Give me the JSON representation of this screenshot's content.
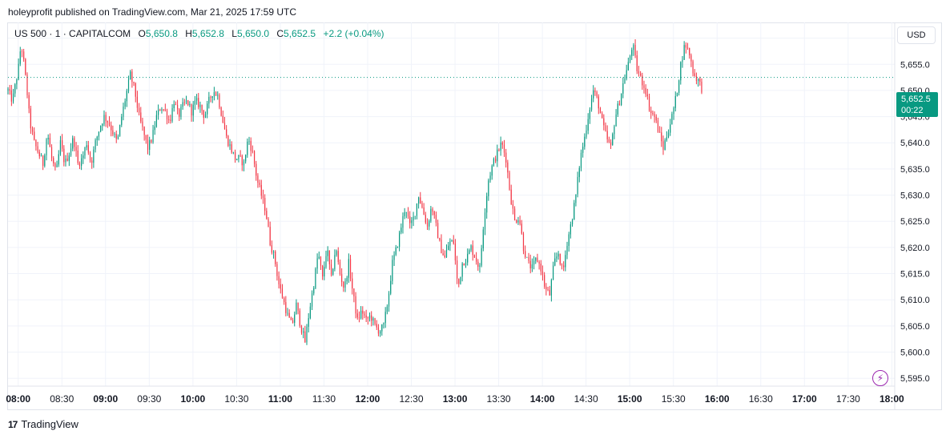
{
  "publish_line": "holeyprofit published on TradingView.com, Mar 21, 2025 17:59 UTC",
  "legend": {
    "symbol": "US 500 · 1 · CAPITALCOM",
    "o_label": "O",
    "o_value": "5,650.8",
    "h_label": "H",
    "h_value": "5,652.8",
    "l_label": "L",
    "l_value": "5,650.0",
    "c_label": "C",
    "c_value": "5,652.5",
    "change": "+2.2 (+0.04%)"
  },
  "currency": "USD",
  "last_price": {
    "value": "5,652.5",
    "countdown": "00:22"
  },
  "brand": {
    "logo": "17",
    "name": "TradingView"
  },
  "icons": {
    "replay": "lightning-icon"
  },
  "colors": {
    "up": "#089981",
    "down": "#f23645",
    "grid": "#f0f3fa",
    "axis_text": "#131722"
  },
  "chart_data": {
    "type": "candlestick",
    "timeframe_minutes": 1,
    "x_ticks": [
      "08:00",
      "08:30",
      "09:00",
      "09:30",
      "10:00",
      "10:30",
      "11:00",
      "11:30",
      "12:00",
      "12:30",
      "13:00",
      "13:30",
      "14:00",
      "14:30",
      "15:00",
      "15:30",
      "16:00",
      "16:30",
      "17:00",
      "17:30",
      "18:00"
    ],
    "y_ticks": [
      "5,660.0",
      "5,655.0",
      "5,650.0",
      "5,645.0",
      "5,640.0",
      "5,635.0",
      "5,630.0",
      "5,625.0",
      "5,620.0",
      "5,615.0",
      "5,610.0",
      "5,605.0",
      "5,600.0",
      "5,595.0"
    ],
    "ylim": [
      5593.5,
      5663
    ],
    "xlim": [
      "07:53",
      "18:02"
    ],
    "grid": true,
    "series": [
      {
        "close_path": [
          [
            "07:53",
            5650
          ],
          [
            "07:56",
            5648
          ],
          [
            "07:58",
            5651
          ],
          [
            "08:00",
            5654
          ],
          [
            "08:02",
            5659
          ],
          [
            "08:04",
            5655
          ],
          [
            "08:06",
            5650
          ],
          [
            "08:08",
            5644
          ],
          [
            "08:11",
            5640
          ],
          [
            "08:14",
            5638
          ],
          [
            "08:17",
            5636
          ],
          [
            "08:20",
            5642
          ],
          [
            "08:23",
            5637
          ],
          [
            "08:26",
            5634
          ],
          [
            "08:29",
            5640
          ],
          [
            "08:32",
            5636
          ],
          [
            "08:35",
            5638
          ],
          [
            "08:38",
            5641
          ],
          [
            "08:41",
            5636
          ],
          [
            "08:44",
            5637
          ],
          [
            "08:47",
            5640
          ],
          [
            "08:50",
            5636
          ],
          [
            "08:53",
            5640
          ],
          [
            "08:56",
            5643
          ],
          [
            "08:59",
            5645
          ],
          [
            "09:02",
            5644
          ],
          [
            "09:05",
            5642
          ],
          [
            "09:08",
            5640
          ],
          [
            "09:11",
            5645
          ],
          [
            "09:14",
            5649
          ],
          [
            "09:17",
            5653
          ],
          [
            "09:20",
            5650
          ],
          [
            "09:23",
            5645
          ],
          [
            "09:26",
            5642
          ],
          [
            "09:29",
            5639
          ],
          [
            "09:32",
            5641
          ],
          [
            "09:35",
            5645
          ],
          [
            "09:38",
            5647
          ],
          [
            "09:41",
            5646
          ],
          [
            "09:44",
            5644
          ],
          [
            "09:47",
            5648
          ],
          [
            "09:50",
            5645
          ],
          [
            "09:53",
            5647
          ],
          [
            "09:56",
            5648
          ],
          [
            "09:59",
            5646
          ],
          [
            "10:02",
            5648
          ],
          [
            "10:05",
            5647
          ],
          [
            "10:08",
            5645
          ],
          [
            "10:11",
            5648
          ],
          [
            "10:14",
            5650
          ],
          [
            "10:17",
            5649
          ],
          [
            "10:20",
            5645
          ],
          [
            "10:23",
            5641
          ],
          [
            "10:26",
            5639
          ],
          [
            "10:29",
            5637
          ],
          [
            "10:32",
            5637
          ],
          [
            "10:35",
            5636
          ],
          [
            "10:38",
            5641
          ],
          [
            "10:41",
            5638
          ],
          [
            "10:44",
            5633
          ],
          [
            "10:47",
            5630
          ],
          [
            "10:50",
            5627
          ],
          [
            "10:53",
            5621
          ],
          [
            "10:56",
            5618
          ],
          [
            "10:59",
            5613
          ],
          [
            "11:02",
            5610
          ],
          [
            "11:05",
            5607
          ],
          [
            "11:08",
            5605
          ],
          [
            "11:11",
            5609
          ],
          [
            "11:14",
            5605
          ],
          [
            "11:17",
            5602
          ],
          [
            "11:20",
            5608
          ],
          [
            "11:23",
            5613
          ],
          [
            "11:26",
            5619
          ],
          [
            "11:29",
            5614
          ],
          [
            "11:32",
            5620
          ],
          [
            "11:35",
            5614
          ],
          [
            "11:38",
            5620
          ],
          [
            "11:41",
            5615
          ],
          [
            "11:44",
            5612
          ],
          [
            "11:47",
            5617
          ],
          [
            "11:50",
            5611
          ],
          [
            "11:53",
            5606
          ],
          [
            "11:56",
            5608
          ],
          [
            "11:59",
            5606
          ],
          [
            "12:02",
            5607
          ],
          [
            "12:05",
            5605
          ],
          [
            "12:08",
            5604
          ],
          [
            "12:11",
            5605
          ],
          [
            "12:14",
            5610
          ],
          [
            "12:17",
            5617
          ],
          [
            "12:20",
            5620
          ],
          [
            "12:23",
            5624
          ],
          [
            "12:26",
            5628
          ],
          [
            "12:29",
            5624
          ],
          [
            "12:32",
            5626
          ],
          [
            "12:35",
            5630
          ],
          [
            "12:38",
            5627
          ],
          [
            "12:41",
            5624
          ],
          [
            "12:44",
            5628
          ],
          [
            "12:47",
            5624
          ],
          [
            "12:50",
            5620
          ],
          [
            "12:53",
            5618
          ],
          [
            "12:56",
            5621
          ],
          [
            "12:59",
            5621
          ],
          [
            "13:02",
            5612
          ],
          [
            "13:05",
            5617
          ],
          [
            "13:08",
            5618
          ],
          [
            "13:11",
            5620
          ],
          [
            "13:14",
            5618
          ],
          [
            "13:17",
            5616
          ],
          [
            "13:20",
            5626
          ],
          [
            "13:23",
            5633
          ],
          [
            "13:26",
            5636
          ],
          [
            "13:29",
            5638
          ],
          [
            "13:32",
            5640
          ],
          [
            "13:35",
            5637
          ],
          [
            "13:38",
            5630
          ],
          [
            "13:41",
            5625
          ],
          [
            "13:44",
            5626
          ],
          [
            "13:47",
            5620
          ],
          [
            "13:50",
            5617
          ],
          [
            "13:53",
            5616
          ],
          [
            "13:56",
            5618
          ],
          [
            "13:59",
            5616
          ],
          [
            "14:02",
            5612
          ],
          [
            "14:05",
            5611
          ],
          [
            "14:08",
            5617
          ],
          [
            "14:11",
            5619
          ],
          [
            "14:14",
            5615
          ],
          [
            "14:17",
            5621
          ],
          [
            "14:20",
            5625
          ],
          [
            "14:23",
            5630
          ],
          [
            "14:26",
            5637
          ],
          [
            "14:29",
            5641
          ],
          [
            "14:32",
            5646
          ],
          [
            "14:35",
            5650
          ],
          [
            "14:38",
            5648
          ],
          [
            "14:41",
            5644
          ],
          [
            "14:44",
            5641
          ],
          [
            "14:47",
            5639
          ],
          [
            "14:50",
            5645
          ],
          [
            "14:53",
            5648
          ],
          [
            "14:56",
            5652
          ],
          [
            "14:59",
            5655
          ],
          [
            "15:02",
            5659
          ],
          [
            "15:05",
            5654
          ],
          [
            "15:08",
            5652
          ],
          [
            "15:11",
            5650
          ],
          [
            "15:14",
            5646
          ],
          [
            "15:17",
            5645
          ],
          [
            "15:20",
            5642
          ],
          [
            "15:23",
            5639
          ],
          [
            "15:26",
            5642
          ],
          [
            "15:29",
            5645
          ],
          [
            "15:32",
            5649
          ],
          [
            "15:35",
            5655
          ],
          [
            "15:38",
            5659
          ],
          [
            "15:41",
            5657
          ],
          [
            "15:44",
            5653
          ],
          [
            "15:47",
            5652
          ],
          [
            "15:50",
            5650
          ]
        ]
      }
    ]
  }
}
